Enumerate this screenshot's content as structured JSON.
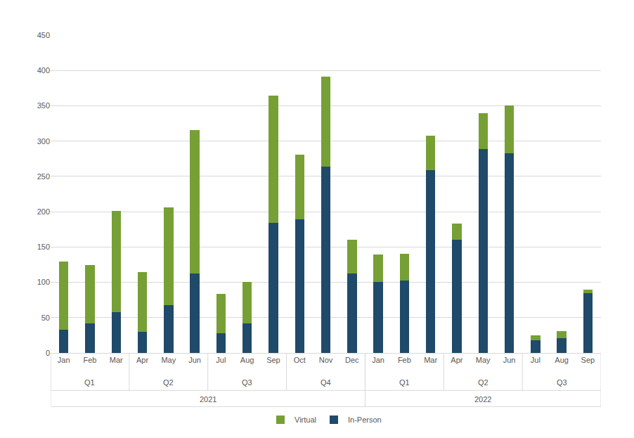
{
  "chart_data": {
    "type": "bar",
    "stacked": true,
    "grid": true,
    "legend": "bottom",
    "categories": [
      "Jan",
      "Feb",
      "Mar",
      "Apr",
      "May",
      "Jun",
      "Jul",
      "Aug",
      "Sep",
      "Oct",
      "Nov",
      "Dec",
      "Jan",
      "Feb",
      "Mar",
      "Apr",
      "May",
      "Jun",
      "Jul",
      "Aug",
      "Sep"
    ],
    "quarters": [
      "Q1",
      "Q1",
      "Q1",
      "Q2",
      "Q2",
      "Q2",
      "Q3",
      "Q3",
      "Q3",
      "Q4",
      "Q4",
      "Q4",
      "Q1",
      "Q1",
      "Q1",
      "Q2",
      "Q2",
      "Q2",
      "Q3",
      "Q3",
      "Q3"
    ],
    "years": [
      "2021",
      "2021",
      "2021",
      "2021",
      "2021",
      "2021",
      "2021",
      "2021",
      "2021",
      "2021",
      "2021",
      "2021",
      "2022",
      "2022",
      "2022",
      "2022",
      "2022",
      "2022",
      "2022",
      "2022",
      "2022"
    ],
    "series": [
      {
        "name": "In-Person",
        "color": "#1f4a6a",
        "values": [
          33,
          42,
          58,
          30,
          68,
          113,
          28,
          42,
          184,
          189,
          264,
          113,
          101,
          103,
          259,
          160,
          289,
          283,
          18,
          21,
          85
        ]
      },
      {
        "name": "Virtual",
        "color": "#76a035",
        "values": [
          96,
          82,
          143,
          84,
          138,
          203,
          56,
          59,
          180,
          92,
          127,
          47,
          38,
          37,
          49,
          23,
          50,
          67,
          7,
          10,
          5
        ]
      }
    ],
    "ylim": [
      0,
      450
    ],
    "yticks": [
      0,
      50,
      100,
      150,
      200,
      250,
      300,
      350,
      400,
      450
    ]
  }
}
